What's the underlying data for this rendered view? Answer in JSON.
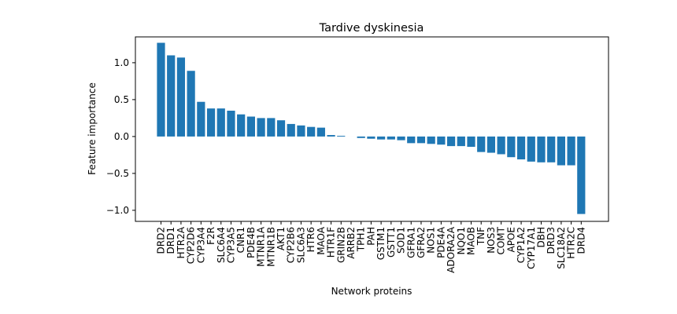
{
  "chart_data": {
    "type": "bar",
    "title": "Tardive dyskinesia",
    "xlabel": "Network proteins",
    "ylabel": "Feature importance",
    "ylim": [
      -1.15,
      1.35
    ],
    "yticks": [
      -1.0,
      -0.5,
      0.0,
      0.5,
      1.0
    ],
    "ytick_labels": [
      "−1.0",
      "−0.5",
      "0.0",
      "0.5",
      "1.0"
    ],
    "grid": false,
    "bar_color": "#1f77b4",
    "categories": [
      "DRD2",
      "DRD1",
      "HTR2A",
      "CYP2D6",
      "CYP3A4",
      "F2R",
      "SLC6A4",
      "CYP3A5",
      "CNR1",
      "PDE4B",
      "MTNR1A",
      "MTNR1B",
      "AKT1",
      "CYP2B6",
      "SLC6A3",
      "HTR6",
      "MAOA",
      "HTR1F",
      "GRIN2B",
      "ARRB2",
      "TPH1",
      "PAH",
      "GSTM1",
      "GSTT1",
      "SOD1",
      "GFRA1",
      "GFRA2",
      "NOS1",
      "PDE4A",
      "ADORA2A",
      "NQO1",
      "MAOB",
      "TNF",
      "NOS3",
      "COMT",
      "APOE",
      "CYP1A2",
      "CYP17A1",
      "DBH",
      "DRD3",
      "SLC18A2",
      "HTR2C",
      "DRD4"
    ],
    "values": [
      1.27,
      1.1,
      1.07,
      0.89,
      0.47,
      0.38,
      0.38,
      0.35,
      0.3,
      0.27,
      0.25,
      0.25,
      0.22,
      0.17,
      0.15,
      0.13,
      0.12,
      0.02,
      0.01,
      0.0,
      -0.02,
      -0.03,
      -0.04,
      -0.04,
      -0.05,
      -0.09,
      -0.09,
      -0.1,
      -0.11,
      -0.13,
      -0.13,
      -0.14,
      -0.21,
      -0.22,
      -0.24,
      -0.28,
      -0.31,
      -0.34,
      -0.35,
      -0.35,
      -0.39,
      -0.39,
      -1.05
    ]
  }
}
